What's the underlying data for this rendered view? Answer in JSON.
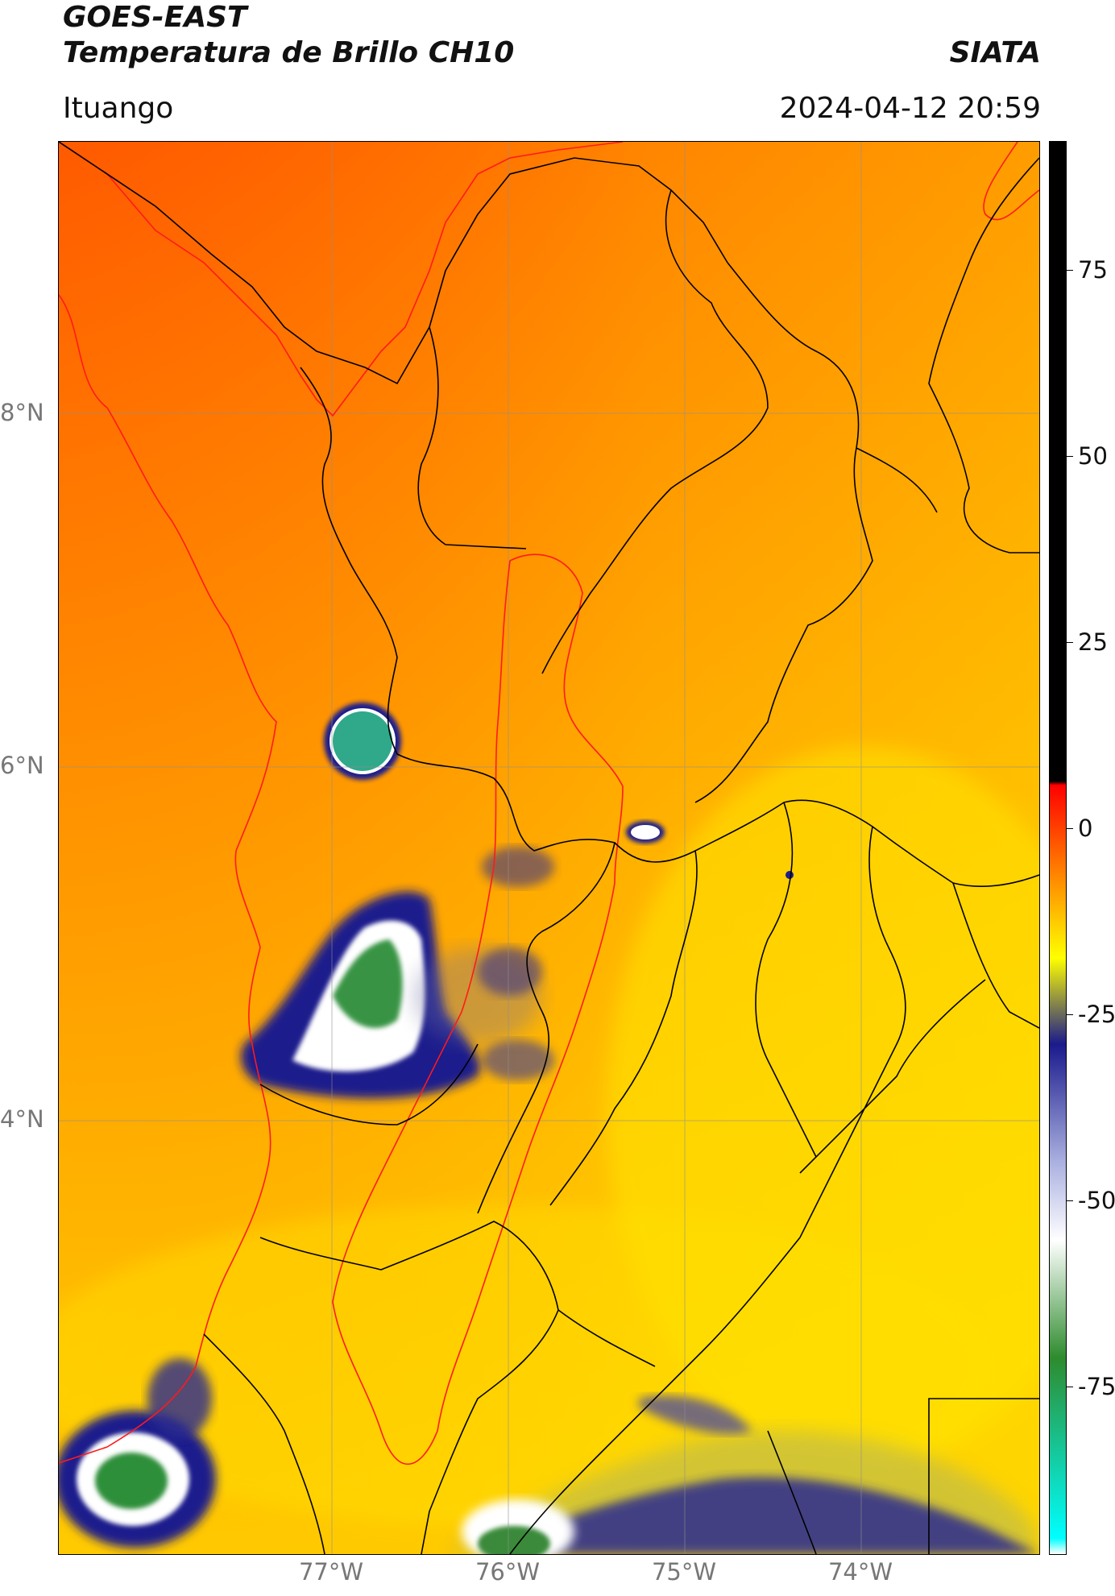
{
  "header": {
    "satellite": "GOES-EAST",
    "product": "Temperatura de Brillo CH10",
    "region": "Ituango",
    "institution": "SIATA",
    "datetime": "2024-04-12 20:59"
  },
  "axes": {
    "lat_labels": [
      "8°N",
      "6°N",
      "4°N"
    ],
    "lon_labels": [
      "77°W",
      "76°W",
      "75°W",
      "74°W"
    ]
  },
  "colorbar": {
    "ticks": [
      "75",
      "50",
      "25",
      "0",
      "-25",
      "-50",
      "-75"
    ],
    "stops": [
      {
        "value": 90,
        "color": "#000000"
      },
      {
        "value": 8.5,
        "color": "#000000"
      },
      {
        "value": 8,
        "color": "#ff0000"
      },
      {
        "value": -3,
        "color": "#ff8000"
      },
      {
        "value": -14,
        "color": "#ffff00"
      },
      {
        "value": -25,
        "color": "#1a1a8c"
      },
      {
        "value": -40,
        "color": "#aab0e0"
      },
      {
        "value": -50,
        "color": "#ffffff"
      },
      {
        "value": -65,
        "color": "#2e8b2e"
      },
      {
        "value": -88,
        "color": "#00ffff"
      },
      {
        "value": -90,
        "color": "#ffffff"
      }
    ]
  },
  "map": {
    "frontier_color": "#ff1a1a",
    "admin_color": "#000000"
  }
}
